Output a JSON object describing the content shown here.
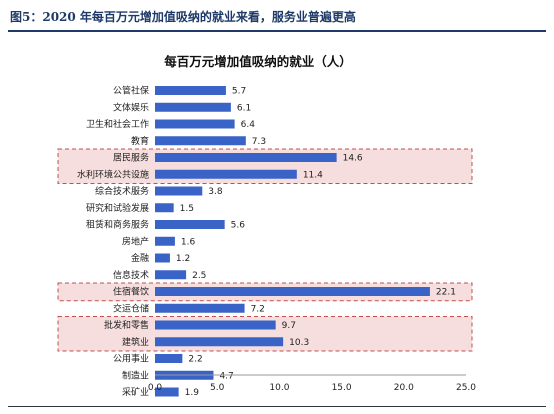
{
  "figure_title": "图5：2020 年每百万元增加值吸纳的就业来看，服务业普遍更高",
  "colors": {
    "bar": "#3a63c8",
    "highlight_fill": "#f6dede",
    "highlight_border": "#c0504d",
    "rule": "#1f3a68"
  },
  "chart_data": {
    "type": "bar",
    "orientation": "horizontal",
    "title": "每百万元增加值吸纳的就业（人）",
    "xlabel": "",
    "ylabel": "",
    "xlim": [
      0,
      25
    ],
    "x_ticks": [
      "0.0",
      "5.0",
      "10.0",
      "15.0",
      "20.0",
      "25.0"
    ],
    "categories": [
      "公管社保",
      "文体娱乐",
      "卫生和社会工作",
      "教育",
      "居民服务",
      "水利环境公共设施",
      "综合技术服务",
      "研究和试验发展",
      "租赁和商务服务",
      "房地产",
      "金融",
      "信息技术",
      "住宿餐饮",
      "交运仓储",
      "批发和零售",
      "建筑业",
      "公用事业",
      "制造业",
      "采矿业"
    ],
    "values": [
      5.7,
      6.1,
      6.4,
      7.3,
      14.6,
      11.4,
      3.8,
      1.5,
      5.6,
      1.6,
      1.2,
      2.5,
      22.1,
      7.2,
      9.7,
      10.3,
      2.2,
      4.7,
      1.9
    ],
    "value_labels": [
      "5.7",
      "6.1",
      "6.4",
      "7.3",
      "14.6",
      "11.4",
      "3.8",
      "1.5",
      "5.6",
      "1.6",
      "1.2",
      "2.5",
      "22.1",
      "7.2",
      "9.7",
      "10.3",
      "2.2",
      "4.7",
      "1.9"
    ],
    "highlight_groups": [
      [
        4,
        5
      ],
      [
        12,
        12
      ],
      [
        14,
        15
      ]
    ],
    "grid": false,
    "legend": "none"
  }
}
